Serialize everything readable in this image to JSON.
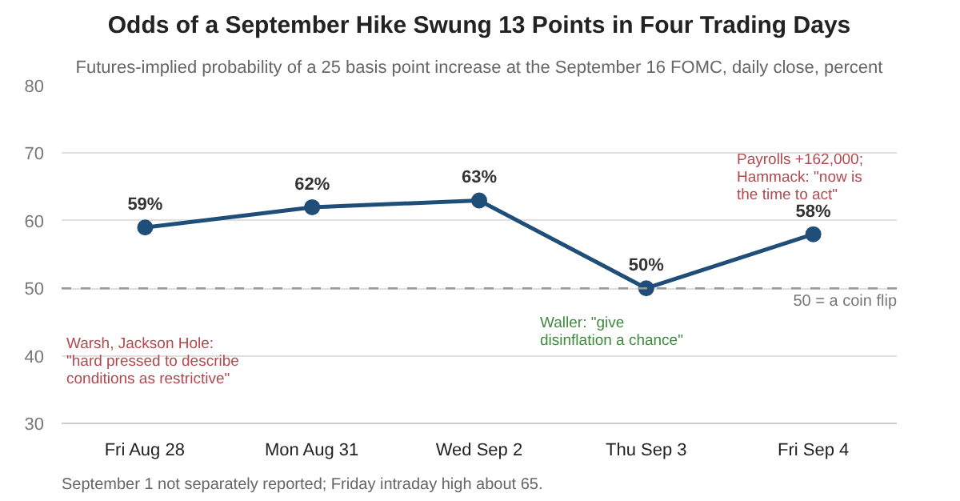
{
  "chart_data": {
    "type": "line",
    "title": "Odds of a September Hike Swung 13 Points in Four Trading Days",
    "subtitle": "Futures-implied probability of a 25 basis point increase at the September 16 FOMC, daily close, percent",
    "categories": [
      "Fri Aug 28",
      "Mon Aug 31",
      "Wed Sep 2",
      "Thu Sep 3",
      "Fri Sep 4"
    ],
    "series": [
      {
        "color": "#1f4e79",
        "values": [
          59,
          62,
          63,
          50,
          58
        ],
        "value_labels": [
          "59%",
          "62%",
          "63%",
          "50%",
          "58%"
        ]
      }
    ],
    "ylim": [
      30,
      80
    ],
    "yticks": [
      30,
      40,
      50,
      60,
      70,
      80
    ],
    "grid": "y",
    "marker": "circle",
    "line_style": "solid",
    "ref_lines": [
      {
        "axis": "y",
        "value": 50,
        "label": "50 = a coin flip",
        "color": "#999999",
        "line_style": "dashed"
      }
    ],
    "annotations": [
      "Warsh, Jackson Hole:\n\"hard pressed to describe\nconditions as restrictive\"",
      "Waller: \"give\ndisinflation a chance\"",
      "Payrolls +162,000;\nHammack: \"now is\nthe time to act\"",
      "September 1 not separately reported; Friday intraday high about 65."
    ]
  }
}
